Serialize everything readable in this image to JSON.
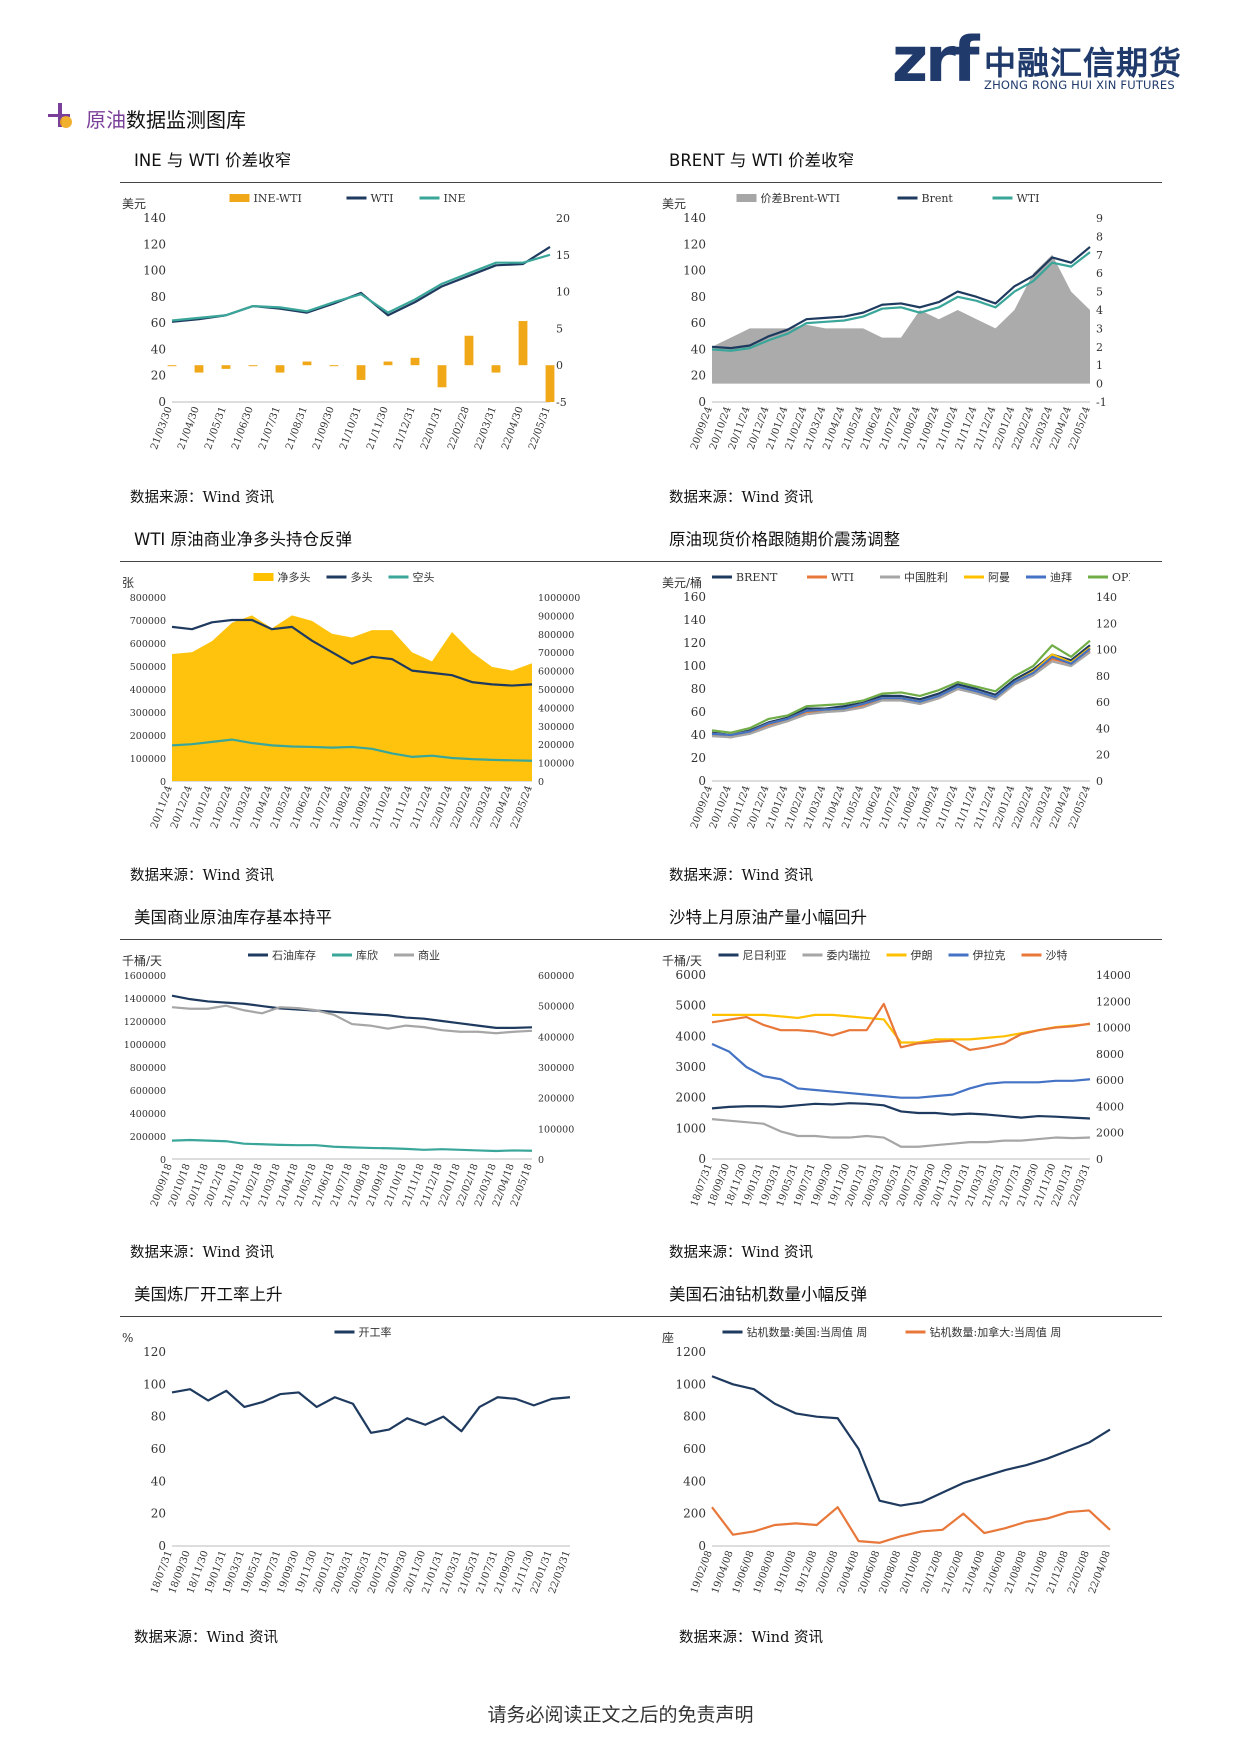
{
  "header": {
    "logo_mark": "zrf",
    "logo_cn": "中融汇信期货",
    "logo_en": "ZHONG RONG HUI XIN FUTURES"
  },
  "section": {
    "title_hl": "原油",
    "title_rest": "数据监测图库"
  },
  "source_text": "数据来源：Wind 资讯",
  "footer": {
    "text": "请务必阅读正文之后的免责声明"
  },
  "colors": {
    "navy": "#1f3a5f",
    "teal": "#3aa69a",
    "orange": "#f0a818",
    "gold": "#ffc000",
    "gray": "#a6a6a6",
    "red": "#e8773a",
    "blue": "#4472c4",
    "green": "#70ad47"
  },
  "chart_data": [
    {
      "id": "c1",
      "type": "line",
      "title": "INE 与 WTI 价差收窄",
      "ylabel": "美元",
      "categories": [
        "21/03/30",
        "21/04/30",
        "21/05/31",
        "21/06/30",
        "21/07/31",
        "21/08/31",
        "21/09/30",
        "21/10/31",
        "21/11/30",
        "21/12/31",
        "22/01/31",
        "22/02/28",
        "22/03/31",
        "22/04/30",
        "22/05/31"
      ],
      "yleft": [
        0,
        140,
        20
      ],
      "yright": [
        -5,
        20,
        5
      ],
      "legend_position": "top",
      "series": [
        {
          "name": "INE-WTI",
          "kind": "bar",
          "axis": "right",
          "color": "#f0a818",
          "values": [
            0,
            -1,
            -0.5,
            0,
            -1,
            0.5,
            0,
            -2,
            0.5,
            1,
            -3,
            4,
            -1,
            6,
            -5
          ]
        },
        {
          "name": "WTI",
          "kind": "line",
          "axis": "left",
          "color": "#1f3a5f",
          "values": [
            61,
            63,
            66,
            73,
            71,
            68,
            75,
            83,
            66,
            76,
            88,
            96,
            104,
            105,
            118
          ]
        },
        {
          "name": "INE",
          "kind": "line",
          "axis": "left",
          "color": "#3aa69a",
          "values": [
            62,
            64,
            66,
            73,
            72,
            69,
            76,
            82,
            68,
            78,
            90,
            98,
            106,
            106,
            112
          ]
        }
      ]
    },
    {
      "id": "c2",
      "type": "area",
      "title": "BRENT 与 WTI 价差收窄",
      "ylabel": "美元",
      "categories": [
        "20/09/24",
        "20/10/24",
        "20/11/24",
        "20/12/24",
        "21/01/24",
        "21/02/24",
        "21/03/24",
        "21/04/24",
        "21/05/24",
        "21/06/24",
        "21/07/24",
        "21/08/24",
        "21/09/24",
        "21/10/24",
        "21/11/24",
        "21/12/24",
        "22/01/24",
        "22/02/24",
        "22/03/24",
        "22/04/24",
        "22/05/24"
      ],
      "yleft": [
        0,
        140,
        20
      ],
      "yright": [
        -1,
        9,
        1
      ],
      "legend_position": "top",
      "series": [
        {
          "name": "价差Brent-WTI",
          "kind": "area",
          "axis": "right",
          "color": "#a6a6a6",
          "values": [
            2,
            2.5,
            3,
            3,
            3,
            3.2,
            3,
            3,
            3,
            2.5,
            2.5,
            4,
            3.5,
            4,
            3.5,
            3,
            4,
            6,
            7,
            5,
            4
          ]
        },
        {
          "name": "Brent",
          "kind": "line",
          "axis": "left",
          "color": "#1f3a5f",
          "values": [
            42,
            41,
            43,
            50,
            55,
            63,
            64,
            65,
            68,
            74,
            75,
            72,
            76,
            84,
            80,
            75,
            88,
            96,
            110,
            106,
            118
          ]
        },
        {
          "name": "WTI",
          "kind": "line",
          "axis": "left",
          "color": "#3aa69a",
          "values": [
            40,
            39,
            41,
            47,
            52,
            60,
            61,
            62,
            65,
            71,
            72,
            68,
            72,
            80,
            77,
            72,
            84,
            92,
            106,
            103,
            114
          ]
        }
      ]
    },
    {
      "id": "c3",
      "type": "area",
      "title": "WTI 原油商业净多头持仓反弹",
      "ylabel": "张",
      "categories": [
        "20/11/24",
        "20/12/24",
        "21/01/24",
        "21/02/24",
        "21/03/24",
        "21/04/24",
        "21/05/24",
        "21/06/24",
        "21/07/24",
        "21/08/24",
        "21/09/24",
        "21/10/24",
        "21/11/24",
        "21/12/24",
        "22/01/24",
        "22/02/24",
        "22/03/24",
        "22/04/24",
        "22/05/24"
      ],
      "yleft": [
        0,
        800000,
        100000
      ],
      "yright": [
        0,
        1000000,
        100000
      ],
      "legend_position": "top",
      "series": [
        {
          "name": "净多头",
          "kind": "area",
          "axis": "right",
          "color": "#ffc000",
          "values": [
            690000,
            700000,
            760000,
            860000,
            900000,
            830000,
            900000,
            870000,
            800000,
            780000,
            820000,
            820000,
            700000,
            650000,
            810000,
            700000,
            620000,
            600000,
            640000
          ]
        },
        {
          "name": "多头",
          "kind": "line",
          "axis": "left",
          "color": "#1f3a5f",
          "values": [
            670000,
            660000,
            690000,
            700000,
            700000,
            660000,
            670000,
            610000,
            560000,
            510000,
            540000,
            530000,
            480000,
            470000,
            460000,
            430000,
            420000,
            415000,
            420000
          ]
        },
        {
          "name": "空头",
          "kind": "line",
          "axis": "left",
          "color": "#3aa69a",
          "values": [
            155000,
            160000,
            170000,
            180000,
            165000,
            155000,
            150000,
            148000,
            145000,
            148000,
            140000,
            120000,
            105000,
            110000,
            100000,
            95000,
            92000,
            90000,
            88000
          ]
        }
      ]
    },
    {
      "id": "c4",
      "type": "line",
      "title": "原油现货价格跟随期价震荡调整",
      "ylabel": "美元/桶",
      "categories": [
        "20/09/24",
        "20/10/24",
        "20/11/24",
        "20/12/24",
        "21/01/24",
        "21/02/24",
        "21/03/24",
        "21/04/24",
        "21/05/24",
        "21/06/24",
        "21/07/24",
        "21/08/24",
        "21/09/24",
        "21/10/24",
        "21/11/24",
        "21/12/24",
        "22/01/24",
        "22/02/24",
        "22/03/24",
        "22/04/24",
        "22/05/24"
      ],
      "yleft": [
        0,
        160,
        20
      ],
      "yright": [
        0,
        140,
        20
      ],
      "legend_position": "top",
      "series": [
        {
          "name": "BRENT",
          "kind": "line",
          "axis": "left",
          "color": "#1f3a5f",
          "values": [
            42,
            40,
            44,
            51,
            55,
            63,
            63,
            65,
            68,
            74,
            74,
            71,
            76,
            84,
            80,
            75,
            88,
            97,
            110,
            105,
            118
          ]
        },
        {
          "name": "WTI",
          "kind": "line",
          "axis": "left",
          "color": "#e8773a",
          "values": [
            40,
            38,
            42,
            48,
            52,
            60,
            60,
            62,
            65,
            71,
            71,
            67,
            72,
            80,
            77,
            71,
            84,
            92,
            106,
            102,
            113
          ]
        },
        {
          "name": "中国胜利",
          "kind": "line",
          "axis": "left",
          "color": "#a6a6a6",
          "values": [
            39,
            38,
            41,
            47,
            52,
            58,
            60,
            61,
            64,
            70,
            70,
            67,
            72,
            80,
            76,
            71,
            84,
            92,
            104,
            100,
            112
          ]
        },
        {
          "name": "阿曼",
          "kind": "line",
          "axis": "left",
          "color": "#ffc000",
          "values": [
            41,
            40,
            43,
            50,
            54,
            61,
            62,
            63,
            67,
            72,
            72,
            69,
            74,
            82,
            78,
            73,
            86,
            95,
            110,
            103,
            116
          ]
        },
        {
          "name": "迪拜",
          "kind": "line",
          "axis": "left",
          "color": "#4472c4",
          "values": [
            41,
            40,
            43,
            50,
            54,
            61,
            62,
            63,
            67,
            72,
            72,
            69,
            74,
            82,
            78,
            73,
            86,
            94,
            108,
            102,
            115
          ]
        },
        {
          "name": "OPEC",
          "kind": "line",
          "axis": "left",
          "color": "#70ad47",
          "values": [
            44,
            42,
            46,
            54,
            57,
            65,
            66,
            67,
            70,
            76,
            77,
            74,
            79,
            86,
            82,
            78,
            91,
            100,
            118,
            108,
            122
          ]
        }
      ]
    },
    {
      "id": "c5",
      "type": "line",
      "title": "美国商业原油库存基本持平",
      "ylabel": "千桶/天",
      "categories": [
        "20/09/18",
        "20/10/18",
        "20/11/18",
        "20/12/18",
        "21/01/18",
        "21/02/18",
        "21/03/18",
        "21/04/18",
        "21/05/18",
        "21/06/18",
        "21/07/18",
        "21/08/18",
        "21/09/18",
        "21/10/18",
        "21/11/18",
        "21/12/18",
        "22/01/18",
        "22/02/18",
        "22/03/18",
        "22/04/18",
        "22/05/18"
      ],
      "yleft": [
        0,
        1600000,
        200000
      ],
      "yright": [
        0,
        600000,
        100000
      ],
      "legend_position": "top",
      "series": [
        {
          "name": "石油库存",
          "kind": "line",
          "axis": "left",
          "color": "#1f3a5f",
          "values": [
            1420000,
            1390000,
            1370000,
            1360000,
            1350000,
            1330000,
            1310000,
            1300000,
            1290000,
            1280000,
            1270000,
            1260000,
            1250000,
            1230000,
            1220000,
            1200000,
            1180000,
            1160000,
            1140000,
            1140000,
            1145000
          ]
        },
        {
          "name": "库欣",
          "kind": "line",
          "axis": "right",
          "color": "#3aa69a",
          "values": [
            60000,
            62000,
            60000,
            58000,
            50000,
            48000,
            46000,
            45000,
            45000,
            40000,
            38000,
            36000,
            35000,
            33000,
            30000,
            32000,
            30000,
            28000,
            26000,
            28000,
            27000
          ]
        },
        {
          "name": "商业",
          "kind": "line",
          "axis": "right",
          "color": "#a6a6a6",
          "values": [
            495000,
            490000,
            490000,
            500000,
            485000,
            475000,
            495000,
            492000,
            485000,
            470000,
            440000,
            435000,
            425000,
            435000,
            430000,
            420000,
            415000,
            415000,
            410000,
            415000,
            418000
          ]
        }
      ]
    },
    {
      "id": "c6",
      "type": "line",
      "title": "沙特上月原油产量小幅回升",
      "ylabel": "千桶/天",
      "categories": [
        "18/07/31",
        "18/09/30",
        "18/11/30",
        "19/01/31",
        "19/03/31",
        "19/05/31",
        "19/07/31",
        "19/09/30",
        "19/11/30",
        "20/01/31",
        "20/03/31",
        "20/05/31",
        "20/07/31",
        "20/09/30",
        "20/11/30",
        "21/01/31",
        "21/03/31",
        "21/05/31",
        "21/07/31",
        "21/09/30",
        "21/11/30",
        "22/01/31",
        "22/03/31"
      ],
      "yleft": [
        0,
        6000,
        1000
      ],
      "yright": [
        0,
        14000,
        2000
      ],
      "legend_position": "top",
      "series": [
        {
          "name": "尼日利亚",
          "kind": "line",
          "axis": "left",
          "color": "#1f3a5f",
          "values": [
            1650,
            1700,
            1720,
            1720,
            1700,
            1750,
            1800,
            1780,
            1820,
            1800,
            1750,
            1550,
            1500,
            1500,
            1450,
            1480,
            1450,
            1400,
            1350,
            1400,
            1380,
            1350,
            1320
          ]
        },
        {
          "name": "委内瑞拉",
          "kind": "line",
          "axis": "left",
          "color": "#a6a6a6",
          "values": [
            1300,
            1250,
            1200,
            1150,
            900,
            750,
            750,
            700,
            700,
            750,
            700,
            400,
            400,
            450,
            500,
            550,
            550,
            600,
            600,
            650,
            700,
            680,
            700
          ]
        },
        {
          "name": "伊朗",
          "kind": "line",
          "axis": "left",
          "color": "#ffc000",
          "values": [
            4700,
            4700,
            4700,
            4700,
            4650,
            4600,
            4700,
            4700,
            4650,
            4600,
            4550,
            3800,
            3800,
            3900,
            3900,
            3900,
            3950,
            4000,
            4100,
            4200,
            4300,
            4350,
            4400
          ]
        },
        {
          "name": "伊拉克",
          "kind": "line",
          "axis": "left",
          "color": "#4472c4",
          "values": [
            3750,
            3500,
            3000,
            2700,
            2600,
            2300,
            2250,
            2200,
            2150,
            2100,
            2050,
            2000,
            2000,
            2050,
            2100,
            2300,
            2450,
            2500,
            2500,
            2500,
            2550,
            2550,
            2600
          ]
        },
        {
          "name": "沙特",
          "kind": "line",
          "axis": "right",
          "color": "#e8773a",
          "values": [
            10400,
            10600,
            10800,
            10200,
            9800,
            9800,
            9700,
            9400,
            9800,
            9800,
            11800,
            8500,
            8800,
            8900,
            9000,
            8300,
            8500,
            8800,
            9500,
            9800,
            10000,
            10100,
            10300
          ]
        }
      ]
    },
    {
      "id": "c7",
      "type": "line",
      "title": "美国炼厂开工率上升",
      "ylabel": "%",
      "categories": [
        "18/07/31",
        "18/09/30",
        "18/11/30",
        "19/01/31",
        "19/03/31",
        "19/05/31",
        "19/07/31",
        "19/09/30",
        "19/11/30",
        "20/01/31",
        "20/03/31",
        "20/05/31",
        "20/07/31",
        "20/09/30",
        "20/11/30",
        "21/01/31",
        "21/03/31",
        "21/05/31",
        "21/07/31",
        "21/09/30",
        "21/11/30",
        "22/01/31",
        "22/03/31"
      ],
      "yleft": [
        0,
        120,
        20
      ],
      "legend_position": "top",
      "series": [
        {
          "name": "开工率",
          "kind": "line",
          "axis": "left",
          "color": "#1f3a5f",
          "values": [
            95,
            97,
            90,
            96,
            86,
            89,
            94,
            95,
            86,
            92,
            88,
            70,
            72,
            79,
            75,
            80,
            71,
            86,
            92,
            91,
            87,
            91,
            92
          ]
        }
      ]
    },
    {
      "id": "c8",
      "type": "line",
      "title": "美国石油钻机数量小幅反弹",
      "ylabel": "座",
      "categories": [
        "19/02/08",
        "19/04/08",
        "19/06/08",
        "19/08/08",
        "19/10/08",
        "19/12/08",
        "20/02/08",
        "20/04/08",
        "20/06/08",
        "20/08/08",
        "20/10/08",
        "20/12/08",
        "21/02/08",
        "21/04/08",
        "21/06/08",
        "21/08/08",
        "21/10/08",
        "21/12/08",
        "22/02/08",
        "22/04/08"
      ],
      "yleft": [
        0,
        1200,
        200
      ],
      "legend_position": "top",
      "series": [
        {
          "name": "钻机数量:美国:当周值 周",
          "kind": "line",
          "axis": "left",
          "color": "#1f3a5f",
          "values": [
            1050,
            1000,
            970,
            880,
            820,
            800,
            790,
            600,
            280,
            250,
            270,
            330,
            390,
            430,
            470,
            500,
            540,
            590,
            640,
            720
          ]
        },
        {
          "name": "钻机数量:加拿大:当周值 周",
          "kind": "line",
          "axis": "left",
          "color": "#e8773a",
          "values": [
            240,
            70,
            90,
            130,
            140,
            130,
            240,
            30,
            20,
            60,
            90,
            100,
            200,
            80,
            110,
            150,
            170,
            210,
            220,
            100
          ]
        }
      ]
    }
  ]
}
